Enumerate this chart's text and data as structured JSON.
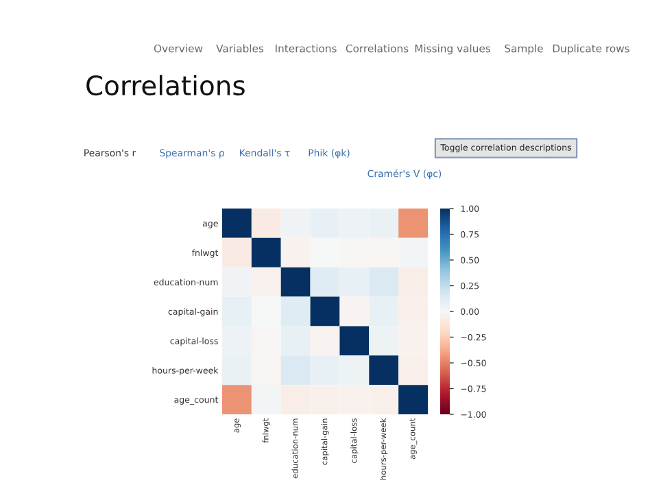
{
  "chart_data": {
    "type": "heatmap",
    "title": "Correlations",
    "annotations": [
      "Overview",
      "Variables",
      "Interactions",
      "Correlations",
      "Missing values",
      "Sample",
      "Duplicate rows",
      "Pearson's r",
      "Spearman's ρ",
      "Kendall's τ",
      "Phik (φk)",
      "Cramér's V (φc)",
      "Toggle correlation descriptions"
    ],
    "categories": [
      "age",
      "fnlwgt",
      "education-num",
      "capital-gain",
      "capital-loss",
      "hours-per-week",
      "age_count"
    ],
    "y_categories": [
      "age",
      "fnlwgt",
      "education-num",
      "capital-gain",
      "capital-loss",
      "hours-per-week",
      "age_count"
    ],
    "cells": [
      [
        1,
        -0.08,
        0.04,
        0.08,
        0.06,
        0.07,
        -0.45
      ],
      [
        -0.08,
        1,
        -0.04,
        0.0,
        -0.01,
        -0.02,
        0.03
      ],
      [
        0.04,
        -0.04,
        1,
        0.12,
        0.08,
        0.15,
        -0.07
      ],
      [
        0.08,
        0.0,
        0.12,
        1,
        -0.03,
        0.08,
        -0.05
      ],
      [
        0.06,
        -0.01,
        0.08,
        -0.03,
        1,
        0.05,
        -0.04
      ],
      [
        0.07,
        -0.02,
        0.15,
        0.08,
        0.05,
        1,
        -0.05
      ],
      [
        -0.45,
        0.03,
        -0.07,
        -0.05,
        -0.04,
        -0.05,
        1
      ]
    ],
    "clim": [
      -1,
      1
    ],
    "cticks": [
      {
        "value": 1,
        "label": "1.00"
      },
      {
        "value": 0.75,
        "label": "0.75"
      },
      {
        "value": 0.5,
        "label": "0.50"
      },
      {
        "value": 0.25,
        "label": "0.25"
      },
      {
        "value": 0,
        "label": "0.00"
      },
      {
        "value": -0.25,
        "label": "−0.25"
      },
      {
        "value": -0.5,
        "label": "−0.50"
      },
      {
        "value": -0.75,
        "label": "−0.75"
      },
      {
        "value": -1,
        "label": "−1.00"
      }
    ]
  }
}
